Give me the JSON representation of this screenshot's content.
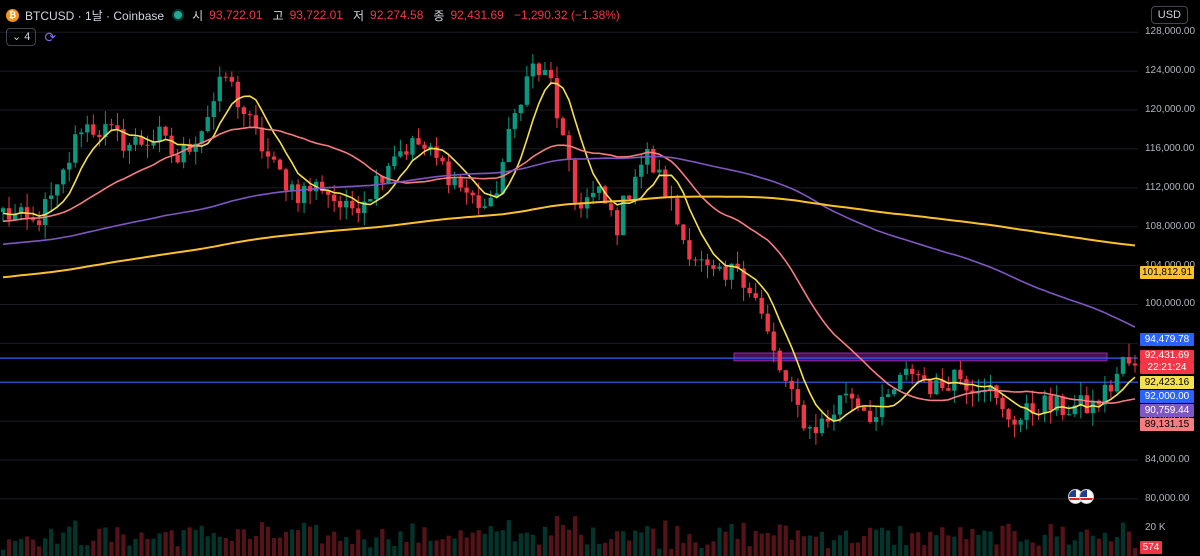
{
  "header": {
    "coin_icon": "bitcoin-icon",
    "coin_glyph": "₿",
    "title": "BTCUSD · 1날 · Coinbase",
    "open_label": "시",
    "open_value": "93,722.01",
    "high_label": "고",
    "high_value": "93,722.01",
    "low_label": "저",
    "low_value": "92,274.58",
    "close_label": "종",
    "close_value": "92,431.69",
    "change": "−1,290.32 (−1.38%)"
  },
  "indicators": {
    "toggle_label": "4",
    "icon": "refresh-icon"
  },
  "currency": "USD",
  "chart_data": {
    "type": "candlestick",
    "y_ticks": [
      80000,
      84000,
      88000,
      92000,
      96000,
      100000,
      104000,
      108000,
      112000,
      116000,
      120000,
      124000,
      128000
    ],
    "y_tick_labels": [
      "80,000.00",
      "84,000.00",
      "88,000.00",
      "92,000.00",
      "96,000.00",
      "100,000.00",
      "104,000.00",
      "108,000.00",
      "112,000.00",
      "116,000.00",
      "120,000.00",
      "124,000.00",
      "128,000.00"
    ],
    "ylim": [
      77000,
      130500
    ],
    "volume_tick_label": "20 K",
    "price_anchors": [
      [
        0,
        109500
      ],
      [
        5,
        108200
      ],
      [
        9,
        111500
      ],
      [
        13,
        118500
      ],
      [
        17,
        117800
      ],
      [
        21,
        116500
      ],
      [
        26,
        117200
      ],
      [
        29,
        114800
      ],
      [
        33,
        118300
      ],
      [
        37,
        123500
      ],
      [
        41,
        118500
      ],
      [
        45,
        114000
      ],
      [
        49,
        111500
      ],
      [
        53,
        112300
      ],
      [
        57,
        109500
      ],
      [
        61,
        111800
      ],
      [
        65,
        115800
      ],
      [
        69,
        116500
      ],
      [
        73,
        114200
      ],
      [
        78,
        110800
      ],
      [
        81,
        109800
      ],
      [
        86,
        121800
      ],
      [
        88,
        124400
      ],
      [
        91,
        122800
      ],
      [
        95,
        110500
      ],
      [
        99,
        111200
      ],
      [
        102,
        108200
      ],
      [
        105,
        113800
      ],
      [
        107,
        115200
      ],
      [
        110,
        111800
      ],
      [
        113,
        106800
      ],
      [
        117,
        103200
      ],
      [
        120,
        102300
      ],
      [
        122,
        104200
      ],
      [
        125,
        100600
      ],
      [
        128,
        94800
      ],
      [
        131,
        90200
      ],
      [
        134,
        87200
      ],
      [
        137,
        88100
      ],
      [
        140,
        91200
      ],
      [
        142,
        90100
      ],
      [
        145,
        88300
      ],
      [
        148,
        91200
      ],
      [
        151,
        93300
      ],
      [
        155,
        91200
      ],
      [
        158,
        93000
      ],
      [
        161,
        91800
      ],
      [
        163,
        92100
      ],
      [
        166,
        88700
      ],
      [
        169,
        88200
      ],
      [
        172,
        89800
      ],
      [
        175,
        89300
      ],
      [
        178,
        89400
      ],
      [
        181,
        89500
      ],
      [
        184,
        91600
      ],
      [
        186,
        94000
      ],
      [
        188,
        93722
      ]
    ],
    "ma_periods": [
      7,
      25,
      99,
      200
    ],
    "ma_colors": [
      "#f5e14c",
      "#f77c80",
      "#7e57c2",
      "#fbc02d"
    ],
    "ma_last_values": [
      "92,423.16",
      "89,131.15",
      "90,759.44",
      "101,812.91"
    ],
    "horizontal_lines": [
      94479.78,
      92000.0
    ],
    "resistance_zone": [
      94200,
      95000
    ],
    "price_tags": {
      "last_price": "92,431.69",
      "countdown": "22:21:24",
      "line_a": "94,479.78",
      "line_b": "92,000.00"
    },
    "last_volume": "574",
    "colors": {
      "up": "#089981",
      "down": "#f23645",
      "line": "#2962ff",
      "zone": "#9c27b0"
    }
  }
}
